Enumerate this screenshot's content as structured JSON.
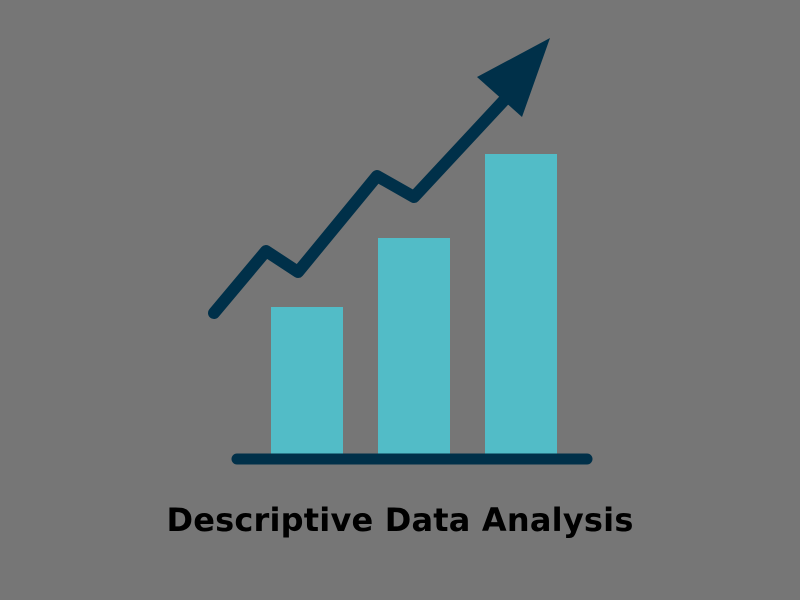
{
  "caption": "Descriptive Data Analysis",
  "icon": "growth-bar-chart-with-rising-arrow-icon",
  "colors": {
    "background": "#767676",
    "bar": "#52bcc7",
    "line": "#003049",
    "caption_text": "#000000"
  },
  "illustration": {
    "bar_levels": [
      0.49,
      0.72,
      1.0
    ],
    "trend": "rising-zigzag-arrow"
  }
}
